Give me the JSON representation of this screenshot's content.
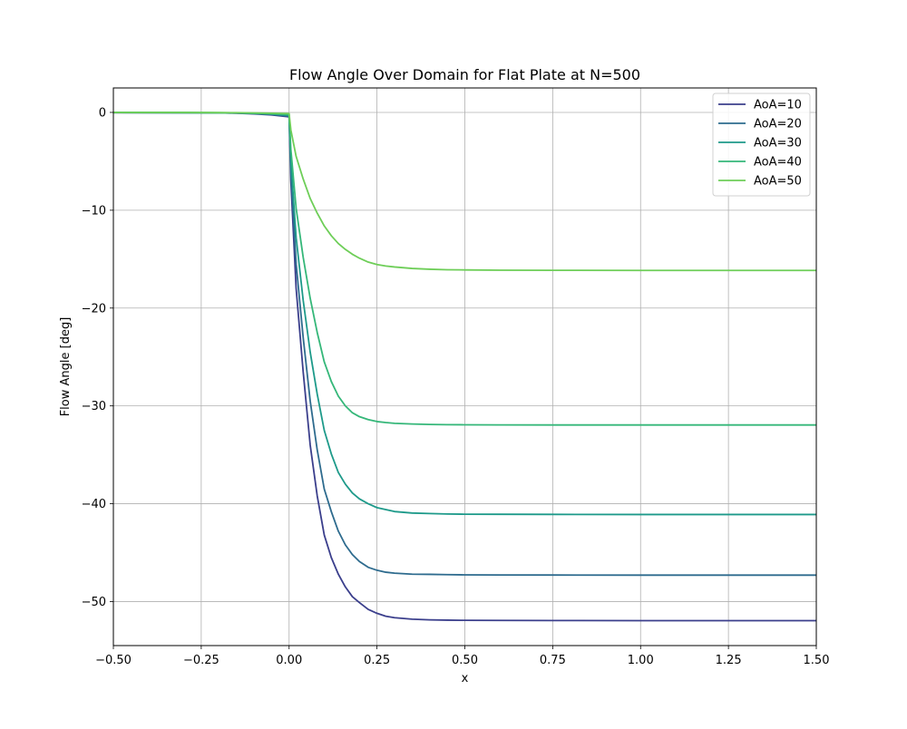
{
  "chart_data": {
    "type": "line",
    "title": "Flow Angle Over Domain for Flat Plate at N=500",
    "xlabel": "x",
    "ylabel": "Flow Angle [deg]",
    "xlim": [
      -0.5,
      1.5
    ],
    "ylim": [
      -54.5,
      2.5
    ],
    "xticks": [
      -0.5,
      -0.25,
      0.0,
      0.25,
      0.5,
      0.75,
      1.0,
      1.25,
      1.5
    ],
    "xtick_labels": [
      "−0.50",
      "−0.25",
      "0.00",
      "0.25",
      "0.50",
      "0.75",
      "1.00",
      "1.25",
      "1.50"
    ],
    "yticks": [
      0,
      -10,
      -20,
      -30,
      -40,
      -50
    ],
    "ytick_labels": [
      "0",
      "−10",
      "−20",
      "−30",
      "−40",
      "−50"
    ],
    "grid": true,
    "legend_position": "top-right",
    "series": [
      {
        "name": "AoA=10",
        "color": "#3b3f8c",
        "x": [
          -0.5,
          -0.3,
          -0.2,
          -0.15,
          -0.1,
          -0.05,
          0.0,
          0.005,
          0.02,
          0.04,
          0.06,
          0.08,
          0.1,
          0.12,
          0.14,
          0.16,
          0.18,
          0.2,
          0.225,
          0.25,
          0.275,
          0.3,
          0.35,
          0.4,
          0.45,
          0.5,
          0.6,
          0.75,
          1.0,
          1.25,
          1.5
        ],
        "y": [
          -0.02,
          -0.03,
          -0.05,
          -0.08,
          -0.15,
          -0.25,
          -0.45,
          -7.0,
          -18.0,
          -26.5,
          -34.0,
          -39.2,
          -43.2,
          -45.5,
          -47.2,
          -48.5,
          -49.5,
          -50.1,
          -50.8,
          -51.2,
          -51.5,
          -51.65,
          -51.8,
          -51.87,
          -51.9,
          -51.92,
          -51.93,
          -51.94,
          -51.95,
          -51.95,
          -51.95
        ]
      },
      {
        "name": "AoA=20",
        "color": "#2e6b8e",
        "x": [
          -0.5,
          -0.3,
          -0.2,
          -0.15,
          -0.1,
          -0.05,
          0.0,
          0.005,
          0.02,
          0.04,
          0.06,
          0.08,
          0.1,
          0.12,
          0.14,
          0.16,
          0.18,
          0.2,
          0.225,
          0.25,
          0.275,
          0.3,
          0.35,
          0.4,
          0.45,
          0.5,
          0.6,
          0.75,
          1.0,
          1.25,
          1.5
        ],
        "y": [
          -0.02,
          -0.03,
          -0.05,
          -0.07,
          -0.12,
          -0.2,
          -0.38,
          -6.0,
          -15.5,
          -23.0,
          -29.5,
          -34.5,
          -38.5,
          -40.8,
          -42.8,
          -44.2,
          -45.2,
          -45.9,
          -46.5,
          -46.8,
          -47.0,
          -47.1,
          -47.2,
          -47.22,
          -47.25,
          -47.27,
          -47.28,
          -47.29,
          -47.3,
          -47.3,
          -47.3
        ]
      },
      {
        "name": "AoA=30",
        "color": "#1e9a8a",
        "x": [
          -0.5,
          -0.3,
          -0.2,
          -0.15,
          -0.1,
          -0.05,
          0.0,
          0.005,
          0.02,
          0.04,
          0.06,
          0.08,
          0.1,
          0.12,
          0.14,
          0.16,
          0.18,
          0.2,
          0.225,
          0.25,
          0.275,
          0.3,
          0.35,
          0.4,
          0.45,
          0.5,
          0.6,
          0.75,
          1.0,
          1.25,
          1.5
        ],
        "y": [
          -0.01,
          -0.02,
          -0.04,
          -0.06,
          -0.1,
          -0.17,
          -0.3,
          -5.0,
          -12.8,
          -19.2,
          -24.5,
          -28.8,
          -32.5,
          -34.9,
          -36.8,
          -38.0,
          -38.9,
          -39.5,
          -40.0,
          -40.4,
          -40.6,
          -40.8,
          -40.95,
          -41.0,
          -41.05,
          -41.07,
          -41.08,
          -41.09,
          -41.1,
          -41.1,
          -41.1
        ]
      },
      {
        "name": "AoA=40",
        "color": "#35b779",
        "x": [
          -0.5,
          -0.3,
          -0.2,
          -0.15,
          -0.1,
          -0.05,
          0.0,
          0.005,
          0.02,
          0.04,
          0.06,
          0.08,
          0.1,
          0.12,
          0.14,
          0.16,
          0.18,
          0.2,
          0.225,
          0.25,
          0.275,
          0.3,
          0.35,
          0.4,
          0.45,
          0.5,
          0.6,
          0.75,
          1.0,
          1.25,
          1.5
        ],
        "y": [
          -0.01,
          -0.02,
          -0.03,
          -0.05,
          -0.08,
          -0.13,
          -0.22,
          -3.8,
          -9.8,
          -14.8,
          -19.0,
          -22.5,
          -25.5,
          -27.5,
          -29.0,
          -30.0,
          -30.7,
          -31.1,
          -31.4,
          -31.6,
          -31.7,
          -31.78,
          -31.85,
          -31.9,
          -31.92,
          -31.93,
          -31.94,
          -31.95,
          -31.95,
          -31.95,
          -31.95
        ]
      },
      {
        "name": "AoA=50",
        "color": "#6ece58",
        "x": [
          -0.5,
          -0.3,
          -0.2,
          -0.15,
          -0.1,
          -0.05,
          0.0,
          0.005,
          0.02,
          0.04,
          0.06,
          0.08,
          0.1,
          0.12,
          0.14,
          0.16,
          0.18,
          0.2,
          0.225,
          0.25,
          0.275,
          0.3,
          0.35,
          0.4,
          0.45,
          0.5,
          0.6,
          0.75,
          1.0,
          1.25,
          1.5
        ],
        "y": [
          -0.01,
          -0.01,
          -0.02,
          -0.03,
          -0.05,
          -0.08,
          -0.12,
          -1.8,
          -4.5,
          -6.8,
          -8.8,
          -10.3,
          -11.6,
          -12.6,
          -13.4,
          -14.0,
          -14.5,
          -14.9,
          -15.3,
          -15.55,
          -15.7,
          -15.8,
          -15.95,
          -16.03,
          -16.08,
          -16.1,
          -16.13,
          -16.14,
          -16.15,
          -16.15,
          -16.15
        ]
      }
    ]
  }
}
